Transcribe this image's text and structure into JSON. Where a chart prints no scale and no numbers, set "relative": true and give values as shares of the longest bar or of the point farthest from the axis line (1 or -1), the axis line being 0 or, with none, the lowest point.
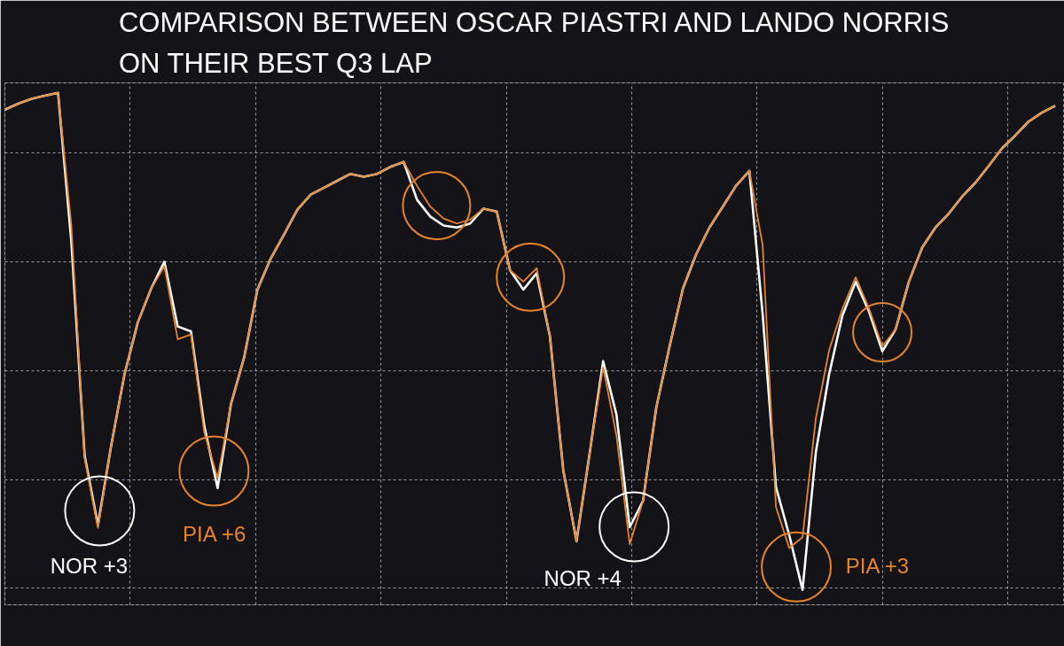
{
  "chart_data": {
    "type": "line",
    "relative": true,
    "title": "COMPARISON BETWEEN OSCAR PIASTRI AND LANDO NORRIS\nON THEIR BEST Q3 LAP",
    "categories": [
      null,
      null,
      null,
      null,
      null,
      null,
      null,
      null,
      null,
      null,
      null,
      null,
      null,
      null,
      null,
      null,
      null,
      null,
      null,
      null,
      null,
      null,
      null,
      null,
      null,
      null,
      null,
      null,
      null,
      null,
      null,
      null,
      null,
      null,
      null,
      null,
      null,
      null,
      null,
      null,
      null,
      null,
      null,
      null,
      null,
      null,
      null,
      null,
      null,
      null,
      null,
      null,
      null,
      null,
      null,
      null,
      null,
      null,
      null,
      null,
      null,
      null,
      null,
      null,
      null,
      null,
      null,
      null,
      null,
      null,
      null,
      null,
      null,
      null,
      null,
      null,
      null,
      null,
      null,
      null
    ],
    "series": [
      {
        "color": "#ffffff",
        "values": [
          0.966,
          0.978,
          0.988,
          0.994,
          1.0,
          0.7,
          0.27,
          0.13,
          0.291,
          0.434,
          0.538,
          0.606,
          0.66,
          0.53,
          0.52,
          0.33,
          0.205,
          0.373,
          0.468,
          0.604,
          0.667,
          0.715,
          0.765,
          0.795,
          0.809,
          0.823,
          0.837,
          0.831,
          0.837,
          0.851,
          0.861,
          0.785,
          0.751,
          0.733,
          0.729,
          0.737,
          0.767,
          0.761,
          0.643,
          0.604,
          0.637,
          0.51,
          0.241,
          0.098,
          0.277,
          0.46,
          0.353,
          0.126,
          0.179,
          0.367,
          0.49,
          0.606,
          0.675,
          0.729,
          0.771,
          0.813,
          0.843,
          0.554,
          0.207,
          0.11,
          0.0,
          0.277,
          0.434,
          0.552,
          0.62,
          0.56,
          0.48,
          0.524,
          0.62,
          0.689,
          0.729,
          0.757,
          0.791,
          0.819,
          0.853,
          0.888,
          0.914,
          0.942,
          0.96,
          0.974
        ]
      },
      {
        "color": "#e8842c",
        "values": [
          0.966,
          0.978,
          0.988,
          0.994,
          1.0,
          0.733,
          0.265,
          0.125,
          0.291,
          0.434,
          0.538,
          0.606,
          0.651,
          0.504,
          0.514,
          0.317,
          0.225,
          0.373,
          0.468,
          0.604,
          0.667,
          0.715,
          0.765,
          0.795,
          0.809,
          0.823,
          0.837,
          0.831,
          0.837,
          0.851,
          0.861,
          0.813,
          0.771,
          0.747,
          0.737,
          0.745,
          0.767,
          0.761,
          0.643,
          0.62,
          0.647,
          0.51,
          0.241,
          0.098,
          0.277,
          0.448,
          0.311,
          0.092,
          0.179,
          0.367,
          0.49,
          0.606,
          0.675,
          0.729,
          0.771,
          0.813,
          0.843,
          0.693,
          0.167,
          0.084,
          0.106,
          0.345,
          0.482,
          0.566,
          0.629,
          0.566,
          0.49,
          0.524,
          0.62,
          0.689,
          0.729,
          0.757,
          0.791,
          0.819,
          0.853,
          0.888,
          0.914,
          0.942,
          0.96,
          0.974
        ]
      }
    ],
    "annotations": [
      "NOR +3",
      "PIA +6",
      "NOR +4",
      "PIA +3"
    ],
    "grid": true,
    "line_style": "solid"
  }
}
